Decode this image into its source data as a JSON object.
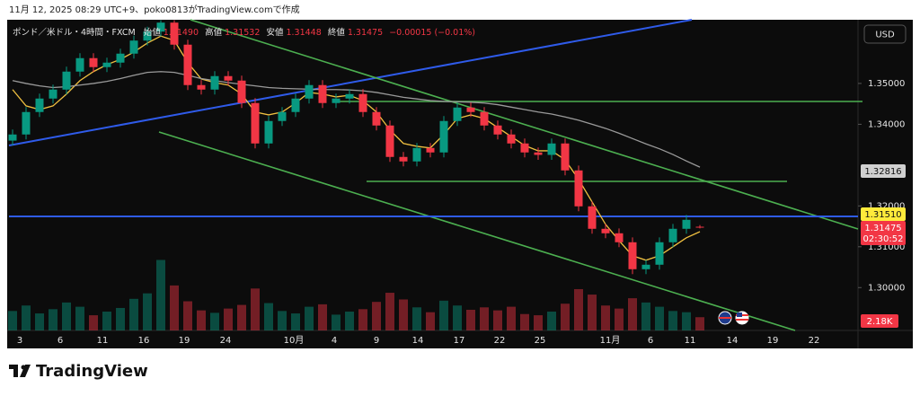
{
  "caption": "11月 12, 2025 08:29 UTC+9、poko0813がTradingView.comで作成",
  "header": {
    "symbol": "ポンド／米ドル・4時間・FXCM",
    "open_label": "始値",
    "open": "1.31490",
    "high_label": "高値",
    "high": "1.31532",
    "low_label": "安値",
    "low": "1.31448",
    "close_label": "終値",
    "close": "1.31475",
    "change": "−0.00015 (−0.01%)"
  },
  "currency_button": "USD",
  "price_badges": {
    "ma": "1.32816",
    "line": "1.31510",
    "last": "1.31475",
    "countdown": "02:30:52",
    "volume": "2.18K"
  },
  "logo": "TradingView",
  "chart_data": {
    "type": "candlestick",
    "up_color": "#089981",
    "down_color": "#f23645",
    "ylim": [
      1.2895,
      1.3656
    ],
    "yticks": [
      {
        "value": 1.3,
        "label": "1.30000"
      },
      {
        "value": 1.31,
        "label": "1.31000"
      },
      {
        "value": 1.32,
        "label": "1.32000"
      },
      {
        "value": 1.34,
        "label": "1.34000"
      },
      {
        "value": 1.35,
        "label": "1.35000"
      }
    ],
    "xtick_labels": [
      "3",
      "6",
      "11",
      "16",
      "19",
      "24",
      "10月",
      "4",
      "9",
      "14",
      "17",
      "22",
      "25",
      "11月",
      "6",
      "11",
      "14",
      "19",
      "22"
    ],
    "open": [
      1.336,
      1.3375,
      1.343,
      1.3463,
      1.3485,
      1.3529,
      1.3562,
      1.354,
      1.3551,
      1.3573,
      1.3605,
      1.3627,
      1.3649,
      1.3595,
      1.3496,
      1.3485,
      1.3518,
      1.3507,
      1.3452,
      1.3353,
      1.3408,
      1.343,
      1.3463,
      1.3496,
      1.3452,
      1.3463,
      1.3474,
      1.343,
      1.3397,
      1.332,
      1.3309,
      1.3342,
      1.3331,
      1.3408,
      1.3441,
      1.343,
      1.3397,
      1.3375,
      1.3353,
      1.3331,
      1.3325,
      1.3353,
      1.3287,
      1.3199,
      1.3144,
      1.3133,
      1.3111,
      1.3045,
      1.3056,
      1.3111,
      1.3144,
      1.3149
    ],
    "high": [
      1.3387,
      1.3442,
      1.3475,
      1.3497,
      1.3541,
      1.3574,
      1.3574,
      1.3563,
      1.3585,
      1.3617,
      1.3639,
      1.3655,
      1.3655,
      1.3607,
      1.3508,
      1.353,
      1.353,
      1.3519,
      1.3464,
      1.342,
      1.3442,
      1.3475,
      1.3508,
      1.3508,
      1.3475,
      1.3486,
      1.3486,
      1.3442,
      1.3409,
      1.3332,
      1.3354,
      1.3354,
      1.342,
      1.3453,
      1.3453,
      1.3442,
      1.3409,
      1.3387,
      1.3365,
      1.3343,
      1.3365,
      1.3365,
      1.3299,
      1.3211,
      1.3156,
      1.3145,
      1.3123,
      1.3068,
      1.3123,
      1.3156,
      1.3178,
      1.31532
    ],
    "low": [
      1.3348,
      1.3363,
      1.3418,
      1.3451,
      1.3473,
      1.3517,
      1.3528,
      1.3528,
      1.3539,
      1.3561,
      1.3593,
      1.3615,
      1.3583,
      1.3484,
      1.3473,
      1.3473,
      1.3495,
      1.344,
      1.3341,
      1.3341,
      1.3396,
      1.3418,
      1.3451,
      1.344,
      1.344,
      1.3451,
      1.3418,
      1.3385,
      1.3308,
      1.3297,
      1.3297,
      1.3319,
      1.3319,
      1.3396,
      1.3418,
      1.3385,
      1.3363,
      1.3341,
      1.3319,
      1.3313,
      1.3313,
      1.3275,
      1.3187,
      1.3132,
      1.3121,
      1.3099,
      1.3033,
      1.3033,
      1.3044,
      1.3099,
      1.3132,
      1.31448
    ],
    "close": [
      1.3375,
      1.343,
      1.3463,
      1.3485,
      1.3529,
      1.3562,
      1.354,
      1.3551,
      1.3573,
      1.3605,
      1.3627,
      1.3649,
      1.3595,
      1.3496,
      1.3485,
      1.3518,
      1.3507,
      1.3452,
      1.3353,
      1.3408,
      1.343,
      1.3463,
      1.3496,
      1.3452,
      1.3463,
      1.3474,
      1.343,
      1.3397,
      1.332,
      1.3309,
      1.3342,
      1.3331,
      1.3408,
      1.3441,
      1.343,
      1.3397,
      1.3375,
      1.3353,
      1.3331,
      1.3325,
      1.3353,
      1.3287,
      1.3199,
      1.3144,
      1.3133,
      1.3111,
      1.3045,
      1.3056,
      1.3111,
      1.3144,
      1.3166,
      1.31475
    ],
    "volume_lim": [
      0,
      13000
    ],
    "volume": [
      3200,
      4100,
      2800,
      3500,
      4600,
      3900,
      2500,
      3100,
      3700,
      5200,
      6100,
      11600,
      7400,
      4800,
      3300,
      2900,
      3600,
      4200,
      6900,
      4500,
      3200,
      2800,
      3900,
      4300,
      2600,
      3100,
      3500,
      4700,
      6200,
      5100,
      3800,
      3000,
      4900,
      4100,
      3400,
      3800,
      3300,
      3900,
      2700,
      2500,
      3100,
      4400,
      6800,
      5900,
      4100,
      3600,
      5300,
      4600,
      3900,
      3200,
      3000,
      2180
    ],
    "moving_averages": [
      {
        "color": "#f0c040",
        "values": [
          1.3485,
          1.3445,
          1.3436,
          1.3445,
          1.3474,
          1.3507,
          1.3529,
          1.3546,
          1.3559,
          1.3577,
          1.3599,
          1.3616,
          1.3605,
          1.3551,
          1.3511,
          1.3502,
          1.3496,
          1.3474,
          1.343,
          1.3423,
          1.343,
          1.3452,
          1.3478,
          1.3474,
          1.3467,
          1.3471,
          1.3458,
          1.343,
          1.3386,
          1.3353,
          1.3346,
          1.3342,
          1.3375,
          1.3414,
          1.3423,
          1.3414,
          1.3392,
          1.337,
          1.3348,
          1.3335,
          1.3335,
          1.3313,
          1.3265,
          1.321,
          1.3155,
          1.3115,
          1.3078,
          1.3067,
          1.3078,
          1.31,
          1.3122,
          1.3137
        ]
      },
      {
        "color": "#9a9a9a",
        "values": [
          1.3507,
          1.35,
          1.3494,
          1.349,
          1.3492,
          1.3496,
          1.35,
          1.3505,
          1.3512,
          1.352,
          1.3527,
          1.3529,
          1.3527,
          1.352,
          1.3512,
          1.3507,
          1.3502,
          1.3498,
          1.3494,
          1.349,
          1.3488,
          1.3487,
          1.3486,
          1.3485,
          1.3485,
          1.3484,
          1.3482,
          1.3478,
          1.3472,
          1.3466,
          1.3462,
          1.3458,
          1.3456,
          1.3455,
          1.3454,
          1.3452,
          1.3448,
          1.3442,
          1.3436,
          1.343,
          1.3425,
          1.3418,
          1.341,
          1.34,
          1.339,
          1.3378,
          1.3365,
          1.3352,
          1.334,
          1.3326,
          1.331,
          1.3295
        ]
      }
    ]
  }
}
